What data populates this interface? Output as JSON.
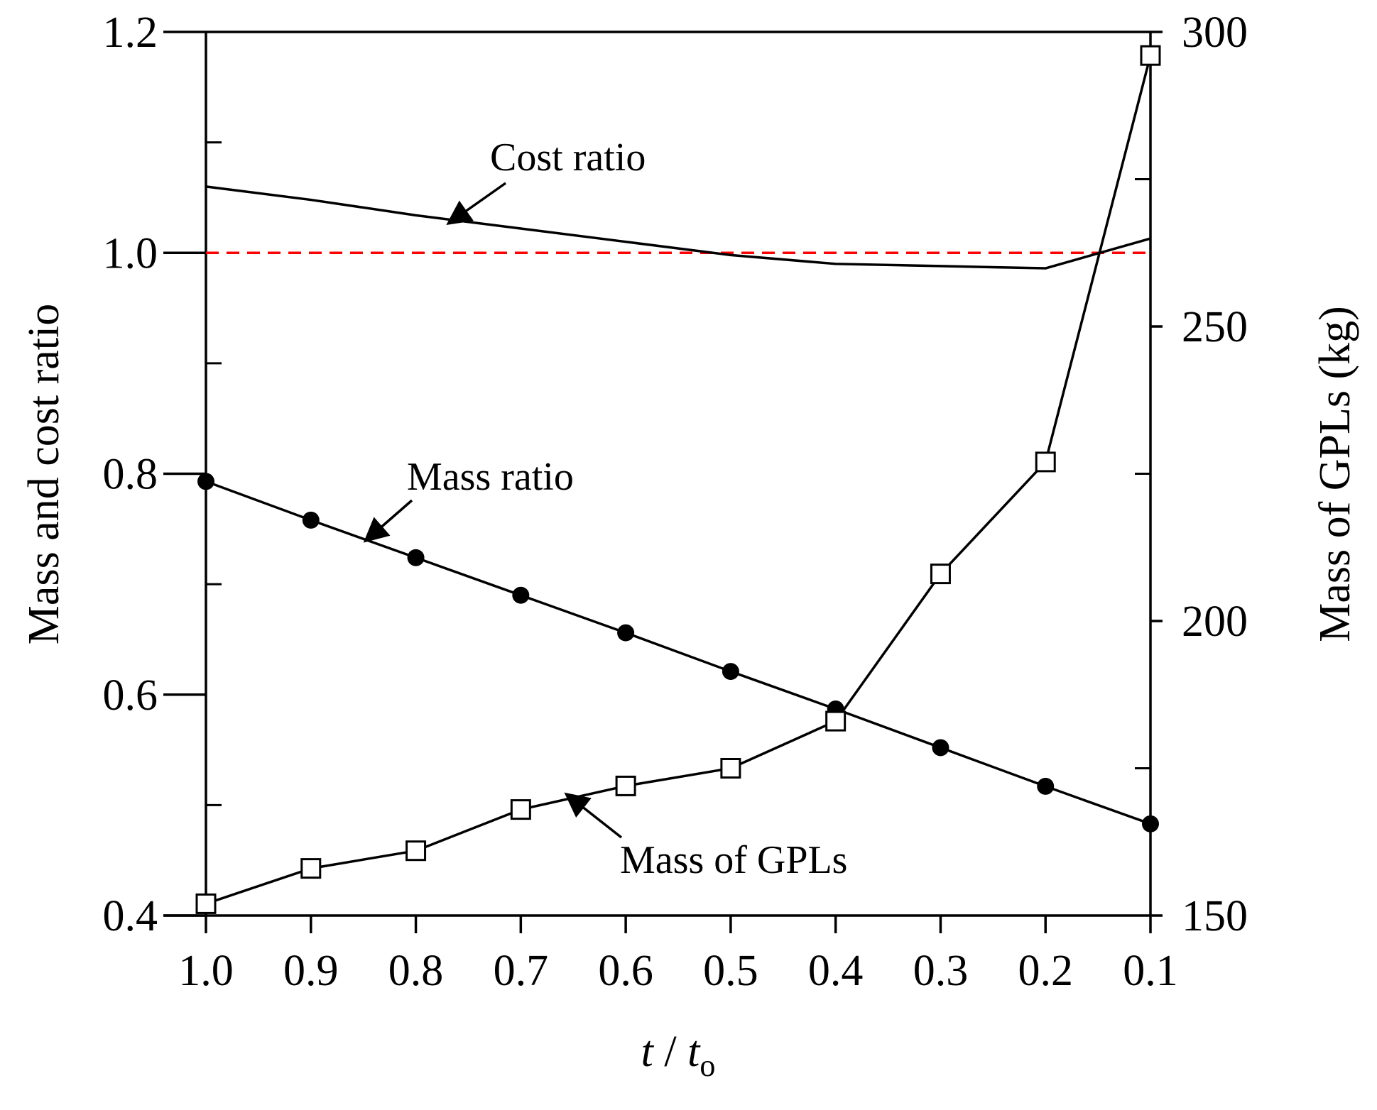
{
  "chart_data": {
    "type": "line",
    "x": [
      1.0,
      0.9,
      0.8,
      0.7,
      0.6,
      0.5,
      0.4,
      0.3,
      0.2,
      0.1
    ],
    "x_tick_labels": [
      "1.0",
      "0.9",
      "0.8",
      "0.7",
      "0.6",
      "0.5",
      "0.4",
      "0.3",
      "0.2",
      "0.1"
    ],
    "xlim": [
      1.0,
      0.1
    ],
    "xlabel": {
      "t": "t",
      "sep": " / ",
      "t2": "t",
      "sub": "o"
    },
    "y_left": {
      "label": "Mass and cost ratio",
      "ylim": [
        0.4,
        1.2
      ],
      "major_ticks": [
        0.4,
        0.6,
        0.8,
        1.0,
        1.2
      ],
      "tick_labels": [
        "0.4",
        "0.6",
        "0.8",
        "1.0",
        "1.2"
      ],
      "minor_ticks": [
        0.5,
        0.7,
        0.9,
        1.1
      ]
    },
    "y_right": {
      "label": "Mass of GPLs (kg)",
      "ylim": [
        150,
        300
      ],
      "major_ticks": [
        150,
        200,
        250,
        300
      ],
      "tick_labels": [
        "150",
        "200",
        "250",
        "300"
      ],
      "minor_ticks": [
        175,
        225,
        275
      ]
    },
    "series": [
      {
        "name": "Cost ratio",
        "axis": "left",
        "marker": "none",
        "color": "#000000",
        "values": [
          1.06,
          1.048,
          1.034,
          1.022,
          1.01,
          0.998,
          0.99,
          0.988,
          0.986,
          1.013
        ]
      },
      {
        "name": "Mass ratio",
        "axis": "left",
        "marker": "circle-filled",
        "color": "#000000",
        "values": [
          0.793,
          0.758,
          0.724,
          0.69,
          0.656,
          0.621,
          0.587,
          0.552,
          0.517,
          0.483
        ]
      },
      {
        "name": "Mass of GPLs",
        "axis": "right",
        "marker": "square-open",
        "color": "#000000",
        "values": [
          152,
          158,
          161,
          168,
          172,
          175,
          183,
          208,
          227,
          296
        ]
      }
    ],
    "reference_line": {
      "axis": "left",
      "value": 1.0,
      "style": "dashed",
      "color": "#ff0000"
    },
    "annotations": [
      {
        "text": "Cost ratio",
        "points_to": "Cost ratio"
      },
      {
        "text": "Mass ratio",
        "points_to": "Mass ratio"
      },
      {
        "text": "Mass of GPLs",
        "points_to": "Mass of GPLs"
      }
    ],
    "grid": false
  }
}
